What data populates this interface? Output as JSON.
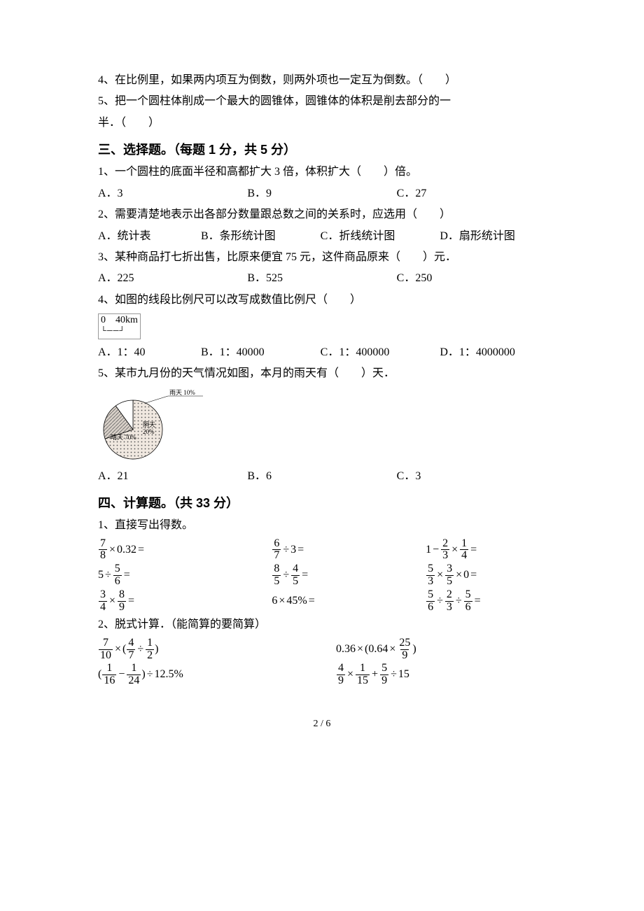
{
  "tf": {
    "q4": "4、在比例里，如果两内项互为倒数，则两外项也一定互为倒数。（　　）",
    "q5a": "5、把一个圆柱体削成一个最大的圆锥体，圆锥体的体积是削去部分的一",
    "q5b": "半．（　　）"
  },
  "sec3": {
    "title": "三、选择题。（每题 1 分，共 5 分）",
    "q1": "1、一个圆柱的底面半径和高都扩大 3 倍，体积扩大（　　）倍。",
    "q1a": "A．3",
    "q1b": "B．9",
    "q1c": "C．27",
    "q2": "2、需要清楚地表示出各部分数量跟总数之间的关系时，应选用（　　）",
    "q2a": "A．统计表",
    "q2b": "B．条形统计图",
    "q2c": "C．折线统计图",
    "q2d": "D．扇形统计图",
    "q3": "3、某种商品打七折出售，比原来便宜 75 元，这件商品原来（　　）元．",
    "q3a": "A．225",
    "q3b": "B．525",
    "q3c": "C．250",
    "q4": "4、如图的线段比例尺可以改写成数值比例尺（　　）",
    "ruler": "0　40km",
    "q4a": "A．1：40",
    "q4b": "B．1：40000",
    "q4c": "C．1：400000",
    "q4d": "D．1：4000000",
    "q5": "5、某市九月份的天气情况如图，本月的雨天有（　　）天．",
    "pie": {
      "slices": [
        {
          "label": "晴天",
          "pct": "70%",
          "pct_val": 70,
          "fill": "#f0e8e0",
          "pattern": "dots"
        },
        {
          "label": "阴天",
          "pct": "20%",
          "pct_val": 20,
          "fill": "#d8d0c8",
          "pattern": "hatch"
        },
        {
          "label": "雨天",
          "pct": "10%",
          "pct_val": 10,
          "fill": "#ffffff",
          "pattern": "none"
        }
      ],
      "stroke": "#000000",
      "bg": "#ffffff",
      "label_font_size": 9
    },
    "q5a": "A．21",
    "q5b": "B．6",
    "q5c": "C．3"
  },
  "sec4": {
    "title": "四、计算题。（共 33 分）",
    "part1": "1、直接写出得数。",
    "r1c1": {
      "type": "frac-times-dec",
      "n": "7",
      "d": "8",
      "dec": "0.32"
    },
    "r1c2": {
      "type": "frac-div-int",
      "n": "6",
      "d": "7",
      "i": "3"
    },
    "r1c3": {
      "type": "one-minus-frac-times-frac",
      "n1": "2",
      "d1": "3",
      "n2": "1",
      "d2": "4"
    },
    "r2c1": {
      "type": "int-div-frac",
      "i": "5",
      "n": "5",
      "d": "6"
    },
    "r2c2": {
      "type": "frac-div-frac",
      "n1": "8",
      "d1": "5",
      "n2": "4",
      "d2": "5"
    },
    "r2c3": {
      "type": "frac-times-frac-times-zero",
      "n1": "5",
      "d1": "3",
      "n2": "3",
      "d2": "5"
    },
    "r3c1": {
      "type": "frac-times-frac",
      "n1": "3",
      "d1": "4",
      "n2": "8",
      "d2": "9"
    },
    "r3c2": {
      "type": "int-times-pct",
      "i": "6",
      "p": "45%"
    },
    "r3c3": {
      "type": "frac-div-frac-div-frac",
      "n1": "5",
      "d1": "6",
      "n2": "2",
      "d2": "3",
      "n3": "5",
      "d3": "6"
    },
    "part2": "2、脱式计算．（能简算的要简算）",
    "p2r1c1": {
      "n1": "7",
      "d1": "10",
      "n2": "4",
      "d2": "7",
      "n3": "1",
      "d3": "2"
    },
    "p2r1c2": {
      "a": "0.36",
      "b": "0.64",
      "n": "25",
      "d": "9"
    },
    "p2r2c1": {
      "n1": "1",
      "d1": "16",
      "n2": "1",
      "d2": "24",
      "p": "12.5%"
    },
    "p2r2c2": {
      "n1": "4",
      "d1": "9",
      "n2": "1",
      "d2": "15",
      "n3": "5",
      "d3": "9",
      "i": "15"
    }
  },
  "pagenum": "2 / 6"
}
